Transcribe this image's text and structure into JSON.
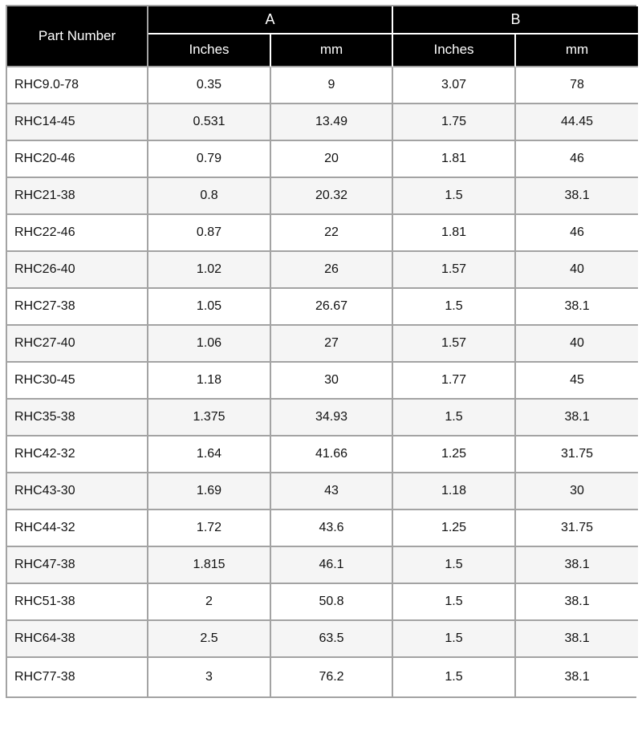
{
  "colors": {
    "header_bg": "#000000",
    "header_text": "#ffffff",
    "border": "#a3a3a3",
    "header_divider": "#ffffff",
    "row_bg": "#ffffff",
    "row_alt_bg": "#f5f5f5",
    "text": "#111111",
    "page_bg": "#ffffff"
  },
  "table": {
    "header": {
      "part_number": "Part Number",
      "group_a": "A",
      "group_b": "B",
      "sub_labels": [
        "Inches",
        "mm",
        "Inches",
        "mm"
      ]
    },
    "rows": [
      {
        "part": "RHC9.0-78",
        "a_inches": "0.35",
        "a_mm": "9",
        "b_inches": "3.07",
        "b_mm": "78"
      },
      {
        "part": "RHC14-45",
        "a_inches": "0.531",
        "a_mm": "13.49",
        "b_inches": "1.75",
        "b_mm": "44.45"
      },
      {
        "part": "RHC20-46",
        "a_inches": "0.79",
        "a_mm": "20",
        "b_inches": "1.81",
        "b_mm": "46"
      },
      {
        "part": "RHC21-38",
        "a_inches": "0.8",
        "a_mm": "20.32",
        "b_inches": "1.5",
        "b_mm": "38.1"
      },
      {
        "part": "RHC22-46",
        "a_inches": "0.87",
        "a_mm": "22",
        "b_inches": "1.81",
        "b_mm": "46"
      },
      {
        "part": "RHC26-40",
        "a_inches": "1.02",
        "a_mm": "26",
        "b_inches": "1.57",
        "b_mm": "40"
      },
      {
        "part": "RHC27-38",
        "a_inches": "1.05",
        "a_mm": "26.67",
        "b_inches": "1.5",
        "b_mm": "38.1"
      },
      {
        "part": "RHC27-40",
        "a_inches": "1.06",
        "a_mm": "27",
        "b_inches": "1.57",
        "b_mm": "40"
      },
      {
        "part": "RHC30-45",
        "a_inches": "1.18",
        "a_mm": "30",
        "b_inches": "1.77",
        "b_mm": "45"
      },
      {
        "part": "RHC35-38",
        "a_inches": "1.375",
        "a_mm": "34.93",
        "b_inches": "1.5",
        "b_mm": "38.1"
      },
      {
        "part": "RHC42-32",
        "a_inches": "1.64",
        "a_mm": "41.66",
        "b_inches": "1.25",
        "b_mm": "31.75"
      },
      {
        "part": "RHC43-30",
        "a_inches": "1.69",
        "a_mm": "43",
        "b_inches": "1.18",
        "b_mm": "30"
      },
      {
        "part": "RHC44-32",
        "a_inches": "1.72",
        "a_mm": "43.6",
        "b_inches": "1.25",
        "b_mm": "31.75"
      },
      {
        "part": "RHC47-38",
        "a_inches": "1.815",
        "a_mm": "46.1",
        "b_inches": "1.5",
        "b_mm": "38.1"
      },
      {
        "part": "RHC51-38",
        "a_inches": "2",
        "a_mm": "50.8",
        "b_inches": "1.5",
        "b_mm": "38.1"
      },
      {
        "part": "RHC64-38",
        "a_inches": "2.5",
        "a_mm": "63.5",
        "b_inches": "1.5",
        "b_mm": "38.1"
      },
      {
        "part": "RHC77-38",
        "a_inches": "3",
        "a_mm": "76.2",
        "b_inches": "1.5",
        "b_mm": "38.1"
      }
    ]
  }
}
